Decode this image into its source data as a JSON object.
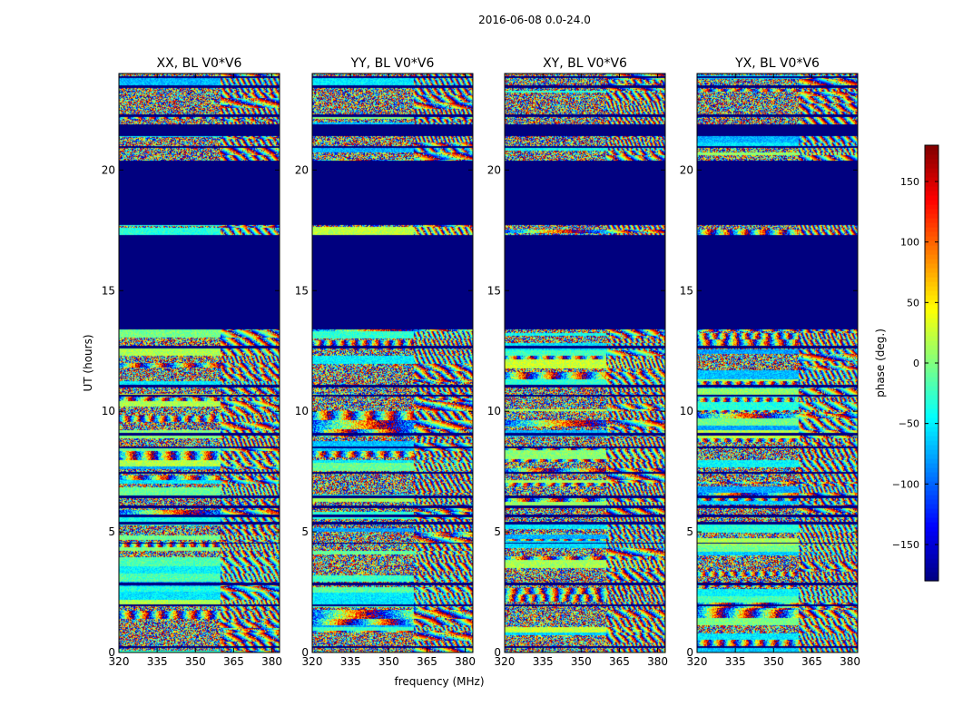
{
  "chart_data": {
    "type": "heatmap",
    "suptitle": "2016-06-08 0.0-24.0",
    "xlabel": "frequency (MHz)",
    "ylabel": "UT (hours)",
    "xlim": [
      320,
      383
    ],
    "ylim": [
      0,
      24
    ],
    "x_ticks": [
      320,
      335,
      350,
      365,
      380
    ],
    "y_ticks": [
      0,
      5,
      10,
      15,
      20
    ],
    "colormap": "jet",
    "masked_color": "#00007f",
    "colorbar": {
      "label": "phase (deg.)",
      "range": [
        -180,
        180
      ],
      "ticks": [
        -150,
        -100,
        -50,
        0,
        50,
        100,
        150
      ],
      "tick_labels": [
        "−150",
        "−100",
        "−50",
        "0",
        "50",
        "100",
        "150"
      ]
    },
    "panels": [
      {
        "title": "XX, BL V0*V6",
        "seed": 11,
        "shows_y_label": true
      },
      {
        "title": "YY, BL V0*V6",
        "seed": 23,
        "shows_y_label": false
      },
      {
        "title": "XY, BL V0*V6",
        "seed": 37,
        "shows_y_label": false
      },
      {
        "title": "YX, BL V0*V6",
        "seed": 53,
        "shows_y_label": false
      }
    ],
    "masked_ut_ranges": [
      [
        13.4,
        17.3
      ],
      [
        17.7,
        20.4
      ],
      [
        20.9,
        21.0
      ],
      [
        21.4,
        21.9
      ],
      [
        22.2,
        22.3
      ],
      [
        23.4,
        23.5
      ],
      [
        23.8,
        23.9
      ],
      [
        12.6,
        12.7
      ],
      [
        11.0,
        11.1
      ],
      [
        10.6,
        10.7
      ],
      [
        9.0,
        9.1
      ],
      [
        8.45,
        8.55
      ],
      [
        7.4,
        7.5
      ],
      [
        6.4,
        6.5
      ],
      [
        6.0,
        6.1
      ],
      [
        5.6,
        5.7
      ],
      [
        5.3,
        5.4
      ],
      [
        4.5,
        4.55
      ],
      [
        2.8,
        2.9
      ],
      [
        1.9,
        2.0
      ],
      [
        0.2,
        0.25
      ]
    ],
    "phase_wrap_fringes": {
      "freq_range_mhz": [
        360,
        383
      ],
      "note": "phase-wrapping fringe pattern visible at high frequencies"
    }
  }
}
